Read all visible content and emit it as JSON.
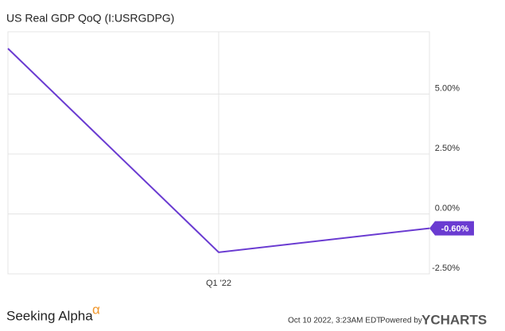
{
  "chart_data": {
    "type": "line",
    "title": "US Real GDP QoQ (I:USRGDPG)",
    "categories": [
      null,
      "Q1 '22",
      null
    ],
    "series": [
      {
        "name": "US Real GDP QoQ",
        "color": "#6a3bd1",
        "values": [
          6.9,
          -1.6,
          -0.6
        ],
        "value_labels": [
          null,
          null,
          "-0.60%"
        ]
      }
    ],
    "ylim": [
      -2.5,
      7.6
    ],
    "yticks": [
      {
        "value": -2.5,
        "label": "-2.50%"
      },
      {
        "value": 0,
        "label": "0.00%"
      },
      {
        "value": 2.5,
        "label": "2.50%"
      },
      {
        "value": 5,
        "label": "5.00%"
      }
    ],
    "grid": true
  },
  "footer": {
    "brand": "Seeking Alpha",
    "brand_symbol": "α",
    "timestamp": "Oct 10 2022, 3:23AM EDT.",
    "powered": "Powered by",
    "provider": "YCHARTS"
  }
}
